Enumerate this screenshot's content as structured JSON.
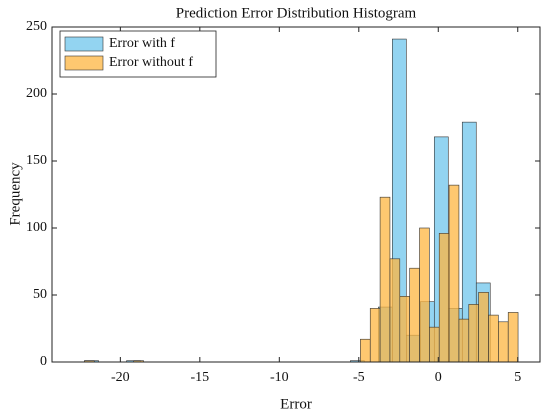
{
  "chart_data": {
    "type": "histogram",
    "title": "Prediction Error Distribution Histogram",
    "xlabel": "Error",
    "ylabel": "Frequency",
    "legend": "upper left",
    "series": [
      {
        "name": "Error with f",
        "color": "#6fc6ec",
        "bins": [
          -22.25,
          -21.37,
          -20.49,
          -19.61,
          -18.73,
          -17.85,
          -16.97,
          -16.09,
          -15.21,
          -14.33,
          -13.45,
          -12.57,
          -11.69,
          -10.81,
          -9.93,
          -9.05,
          -8.17,
          -7.29,
          -6.41,
          -5.53,
          -4.65,
          -3.77,
          -2.89,
          -2.01,
          -1.13,
          -0.25,
          0.63,
          1.51,
          2.39,
          3.27
        ],
        "values": [
          1,
          0,
          0,
          1,
          0,
          0,
          0,
          0,
          0,
          0,
          0,
          0,
          0,
          0,
          0,
          0,
          0,
          0,
          0,
          1,
          0,
          41,
          241,
          20,
          45,
          168,
          40,
          179,
          59
        ]
      },
      {
        "name": "Error without f",
        "color": "#fdb640",
        "bins": [
          -22.26,
          -21.64,
          -21.02,
          -20.4,
          -19.78,
          -19.16,
          -18.54,
          -17.92,
          -17.3,
          -16.68,
          -16.06,
          -15.44,
          -14.82,
          -14.2,
          -13.58,
          -12.96,
          -12.34,
          -11.72,
          -11.1,
          -10.48,
          -9.86,
          -9.24,
          -8.62,
          -8.0,
          -7.38,
          -6.76,
          -6.14,
          -5.52,
          -4.9,
          -4.28,
          -3.66,
          -3.04,
          -2.42,
          -1.8,
          -1.18,
          -0.56,
          0.06,
          0.68,
          1.3,
          1.92,
          2.54,
          3.16,
          3.78,
          4.4,
          5.02
        ],
        "values": [
          1,
          0,
          0,
          0,
          0,
          1,
          0,
          0,
          0,
          0,
          0,
          0,
          0,
          0,
          0,
          0,
          0,
          0,
          0,
          0,
          0,
          0,
          0,
          0,
          0,
          0,
          0,
          0,
          17,
          40,
          123,
          77,
          49,
          70,
          100,
          26,
          96,
          132,
          32,
          43,
          52,
          35,
          30,
          37
        ]
      }
    ],
    "xlim": [
      -24.3,
      6.4
    ],
    "xticks": [
      -20,
      -15,
      -10,
      -5,
      0,
      5
    ],
    "ylim": [
      0,
      250
    ],
    "yticks": [
      0,
      50,
      100,
      150,
      200,
      250
    ]
  }
}
